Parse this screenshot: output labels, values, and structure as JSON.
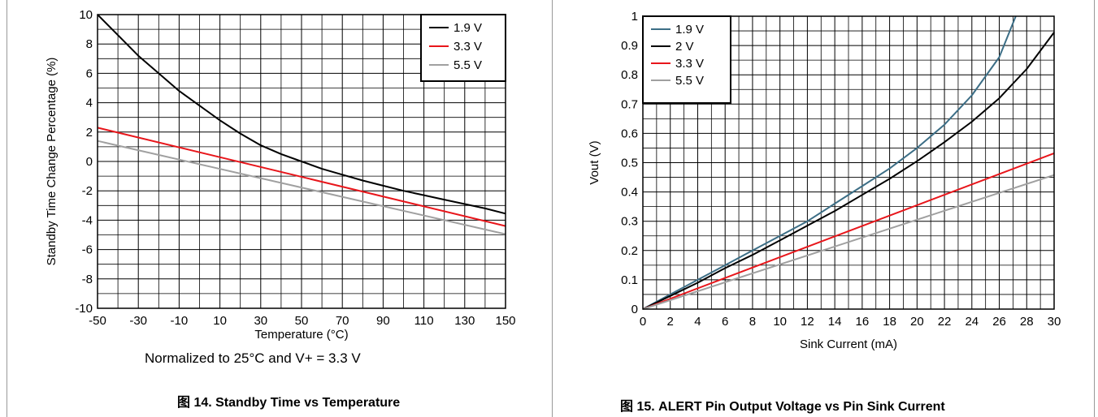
{
  "charts": [
    {
      "type": "line",
      "xlabel": "Temperature (°C)",
      "ylabel": "Standby Time Change Percentage (%)",
      "xlim": [
        -50,
        150
      ],
      "ylim": [
        -10,
        10
      ],
      "xticks": [
        -50,
        -30,
        -10,
        10,
        30,
        50,
        70,
        90,
        110,
        130,
        150
      ],
      "yticks": [
        -10,
        -8,
        -6,
        -4,
        -2,
        0,
        2,
        4,
        6,
        8,
        10
      ],
      "grid": true,
      "legend_position": "top-right",
      "note": "Normalized to 25°C and V+ = 3.3 V",
      "caption": "图 14. Standby Time vs Temperature",
      "series": [
        {
          "name": "1.9 V",
          "color": "#000000",
          "x": [
            -50,
            -40,
            -30,
            -20,
            -10,
            0,
            10,
            20,
            30,
            40,
            50,
            60,
            70,
            80,
            90,
            100,
            110,
            120,
            130,
            140,
            150
          ],
          "y": [
            10,
            8.6,
            7.2,
            6.0,
            4.8,
            3.8,
            2.8,
            1.9,
            1.1,
            0.5,
            0.0,
            -0.5,
            -0.9,
            -1.3,
            -1.65,
            -2.0,
            -2.3,
            -2.6,
            -2.9,
            -3.2,
            -3.55
          ]
        },
        {
          "name": "3.3 V",
          "color": "#e8161b",
          "x": [
            -50,
            150
          ],
          "y": [
            2.3,
            -4.4
          ]
        },
        {
          "name": "5.5 V",
          "color": "#a0a0a0",
          "x": [
            -50,
            150
          ],
          "y": [
            1.4,
            -4.95
          ]
        }
      ]
    },
    {
      "type": "line",
      "xlabel": "Sink Current (mA)",
      "ylabel": "Vout (V)",
      "xlim": [
        0,
        30
      ],
      "ylim": [
        0,
        1
      ],
      "xticks": [
        0,
        2,
        4,
        6,
        8,
        10,
        12,
        14,
        16,
        18,
        20,
        22,
        24,
        26,
        28,
        30
      ],
      "yticks": [
        0,
        0.1,
        0.2,
        0.3,
        0.4,
        0.5,
        0.6,
        0.7,
        0.8,
        0.9,
        1
      ],
      "grid": true,
      "legend_position": "top-left",
      "caption": "图 15. ALERT Pin Output Voltage vs Pin Sink Current",
      "series": [
        {
          "name": "1.9 V",
          "color": "#3c6e86",
          "x": [
            0,
            2,
            4,
            6,
            8,
            10,
            12,
            14,
            16,
            18,
            20,
            22,
            24,
            26,
            27.2
          ],
          "y": [
            0,
            0.05,
            0.1,
            0.15,
            0.2,
            0.25,
            0.3,
            0.36,
            0.42,
            0.48,
            0.55,
            0.63,
            0.73,
            0.86,
            1.0
          ]
        },
        {
          "name": "2 V",
          "color": "#000000",
          "x": [
            0,
            2,
            4,
            6,
            8,
            10,
            12,
            14,
            16,
            18,
            20,
            22,
            24,
            26,
            28,
            30
          ],
          "y": [
            0,
            0.045,
            0.09,
            0.14,
            0.185,
            0.235,
            0.285,
            0.335,
            0.39,
            0.445,
            0.505,
            0.57,
            0.64,
            0.72,
            0.82,
            0.945
          ]
        },
        {
          "name": "3.3 V",
          "color": "#e8161b",
          "x": [
            0,
            30
          ],
          "y": [
            0,
            0.532
          ]
        },
        {
          "name": "5.5 V",
          "color": "#a0a0a0",
          "x": [
            0,
            30
          ],
          "y": [
            0,
            0.458
          ]
        }
      ]
    }
  ]
}
